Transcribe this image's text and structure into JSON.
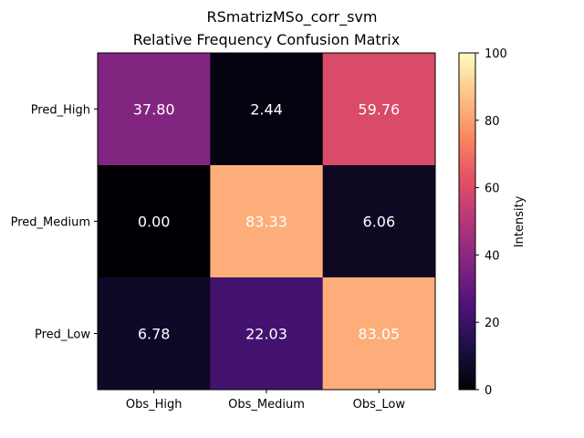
{
  "chart_data": {
    "type": "heatmap",
    "title": "RSmatrizMSo_corr_svm",
    "subtitle": "Relative Frequency Confusion Matrix",
    "x_categories": [
      "Obs_High",
      "Obs_Medium",
      "Obs_Low"
    ],
    "y_categories": [
      "Pred_High",
      "Pred_Medium",
      "Pred_Low"
    ],
    "values": [
      [
        37.8,
        2.44,
        59.76
      ],
      [
        0.0,
        83.33,
        6.06
      ],
      [
        6.78,
        22.03,
        83.05
      ]
    ],
    "value_labels": [
      [
        "37.80",
        "2.44",
        "59.76"
      ],
      [
        "0.00",
        "83.33",
        "6.06"
      ],
      [
        "6.78",
        "22.03",
        "83.05"
      ]
    ],
    "colormap": "magma",
    "colorbar": {
      "label": "Intensity",
      "range": [
        0,
        100
      ],
      "ticks": [
        0,
        20,
        40,
        60,
        80,
        100
      ],
      "tick_labels": [
        "0",
        "20",
        "40",
        "60",
        "80",
        "100"
      ]
    }
  }
}
